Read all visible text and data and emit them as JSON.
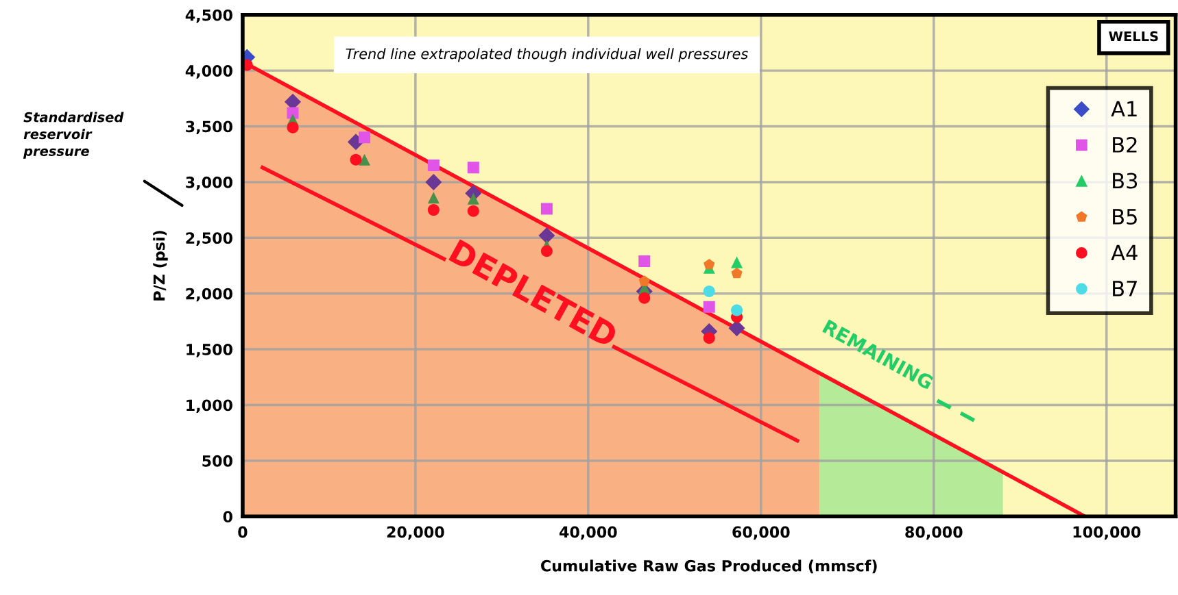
{
  "chart_data": {
    "type": "scatter",
    "xlabel": "Cumulative Raw Gas Produced (mmscf)",
    "ylabel": "P/Z (psi)",
    "legend_title": "WELLS",
    "xlim": [
      0,
      108000
    ],
    "ylim": [
      0,
      4500
    ],
    "xticks": [
      0,
      {
        "value": 20000,
        "label": "20,000"
      },
      {
        "value": 40000,
        "label": "40,000"
      },
      {
        "value": 60000,
        "label": "60,000"
      },
      {
        "value": 80000,
        "label": "80,000"
      },
      {
        "value": 100000,
        "label": "100,000"
      }
    ],
    "yticks": [
      0,
      500,
      {
        "value": 1000,
        "label": "1,000"
      },
      {
        "value": 1500,
        "label": "1,500"
      },
      {
        "value": 2000,
        "label": "2,000"
      },
      {
        "value": 2500,
        "label": "2,500"
      },
      {
        "value": 3000,
        "label": "3,000"
      },
      {
        "value": 3500,
        "label": "3,500"
      },
      {
        "value": 4000,
        "label": "4,000"
      },
      {
        "value": 4500,
        "label": "4,500"
      }
    ],
    "grid": true,
    "legend": "top right",
    "series": [
      {
        "type": "area",
        "color": "#f9b183",
        "x": [
          0,
          66750
        ],
        "values": [
          4080,
          1290
        ]
      },
      {
        "type": "area",
        "color": "#b5ea98",
        "x": [
          66750,
          80000,
          88000
        ],
        "values": [
          1290,
          730,
          400
        ]
      },
      {
        "type": "line",
        "color": "#ff1020",
        "line_style": "solid",
        "x": [
          0,
          97500
        ],
        "values": [
          4080,
          0
        ]
      },
      {
        "type": "line",
        "color": "#ff1020",
        "line_style": "solid",
        "x": [
          2300,
          23300,
          33000,
          43000,
          64200
        ],
        "values": [
          3130,
          2310,
          null,
          1520,
          680
        ]
      },
      {
        "type": "line",
        "color": "#22cc66",
        "line_style": "dashed",
        "x": [
          80400,
          85200
        ],
        "values": [
          1040,
          840
        ]
      },
      {
        "name": "A1",
        "color": "#3b4cc8",
        "marker": "diamond",
        "x": [
          500,
          5800,
          13100,
          22100,
          26700,
          35200,
          46500,
          54000,
          57200
        ],
        "values": [
          4120,
          3720,
          3360,
          3000,
          2900,
          2520,
          2020,
          1660,
          1690
        ],
        "colors": [
          "#3b4cc8",
          "#6a3795",
          "#6a3795",
          "#6a3795",
          "#6a3795",
          "#6a3795",
          "#6a3795",
          "#6a3795",
          "#6a3795"
        ]
      },
      {
        "name": "B2",
        "color": "#e055e8",
        "marker": "square",
        "x": [
          5800,
          14100,
          22100,
          26700,
          35200,
          46500,
          54000
        ],
        "values": [
          3620,
          3400,
          3150,
          3130,
          2760,
          2290,
          1880
        ]
      },
      {
        "name": "B3",
        "color": "#22cc66",
        "marker": "triangle",
        "x": [
          5800,
          14100,
          22100,
          26700,
          35200,
          46500,
          54000,
          57200
        ],
        "values": [
          3560,
          3200,
          2860,
          2850,
          2430,
          2050,
          2230,
          2280
        ],
        "colors": [
          "#4a8f4a",
          "#4a8f4a",
          "#4a8f4a",
          "#4a8f4a",
          "#4a8f4a",
          "#4a8f4a",
          "#22cc66",
          "#22cc66"
        ]
      },
      {
        "name": "B5",
        "color": "#f07828",
        "x": [
          46500,
          54000,
          57200
        ],
        "values": [
          2110,
          2260,
          2180
        ]
      },
      {
        "name": "A4",
        "color": "#ff1020",
        "marker": "circle",
        "x": [
          500,
          5800,
          13100,
          22100,
          26700,
          35200,
          46500,
          54000,
          57200
        ],
        "values": [
          4050,
          3490,
          3200,
          2750,
          2740,
          2380,
          1960,
          1600,
          1790
        ]
      },
      {
        "name": "B7",
        "color": "#4ddce6",
        "marker": "circle",
        "x": [
          54000,
          57200
        ],
        "values": [
          2020,
          1850
        ]
      }
    ],
    "annotations": [
      "Trend line extrapolated though individual well pressures",
      "Standardised reservoir pressure",
      "DEPLETED",
      "REMAINING"
    ]
  }
}
